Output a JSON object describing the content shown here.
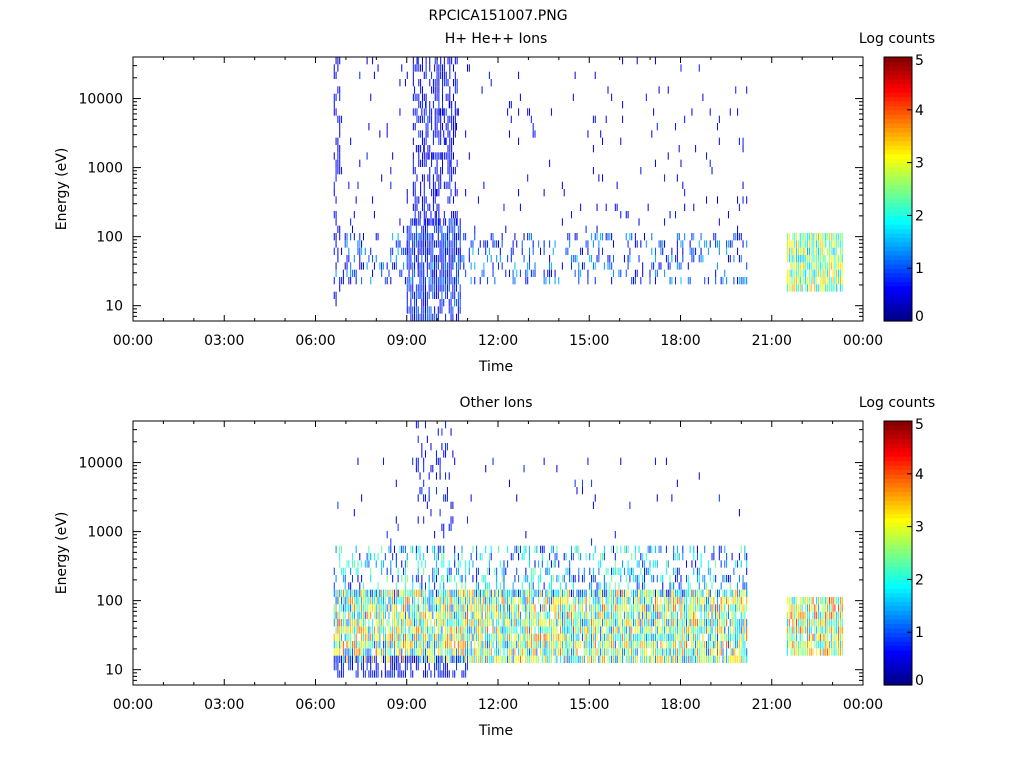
{
  "page_title": "RPCICA151007.PNG",
  "chart_data": [
    {
      "type": "heatmap",
      "title": "H+ He++ Ions",
      "xlabel": "Time",
      "ylabel": "Energy (eV)",
      "x_ticks": [
        "00:00",
        "03:00",
        "06:00",
        "09:00",
        "12:00",
        "15:00",
        "18:00",
        "21:00",
        "00:00"
      ],
      "x_range_hours": [
        0,
        24
      ],
      "y_scale": "log",
      "y_ticks": [
        {
          "value": 10,
          "label": "10"
        },
        {
          "value": 100,
          "label": "100"
        },
        {
          "value": 1000,
          "label": "1000"
        },
        {
          "value": 10000,
          "label": "10000"
        }
      ],
      "y_range": [
        6,
        40000
      ],
      "colorbar": {
        "label": "Log counts",
        "range": [
          0,
          5
        ],
        "ticks": [
          "0",
          "1",
          "2",
          "3",
          "4",
          "5"
        ],
        "colormap": "jet"
      },
      "regions": [
        {
          "t_start": 6.6,
          "t_end": 6.8,
          "e_min": 10,
          "e_max": 40000,
          "density": 0.35,
          "level_min": 0.3,
          "level_max": 0.8
        },
        {
          "t_start": 6.6,
          "t_end": 20.2,
          "e_min": 25,
          "e_max": 100,
          "density": 0.28,
          "level_min": 0.3,
          "level_max": 1.6
        },
        {
          "t_start": 6.6,
          "t_end": 20.2,
          "e_min": 100,
          "e_max": 40000,
          "density": 0.03,
          "level_min": 0.3,
          "level_max": 0.8
        },
        {
          "t_start": 9.2,
          "t_end": 10.7,
          "e_min": 150,
          "e_max": 40000,
          "density": 0.5,
          "level_min": 0.3,
          "level_max": 0.9
        },
        {
          "t_start": 9.0,
          "t_end": 10.8,
          "e_min": 6,
          "e_max": 150,
          "density": 0.75,
          "level_min": 0.3,
          "level_max": 1.2
        },
        {
          "t_start": 21.5,
          "t_end": 23.3,
          "e_min": 18,
          "e_max": 95,
          "density": 0.95,
          "level_min": 1.5,
          "level_max": 3.6
        }
      ]
    },
    {
      "type": "heatmap",
      "title": "Other Ions",
      "xlabel": "Time",
      "ylabel": "Energy (eV)",
      "x_ticks": [
        "00:00",
        "03:00",
        "06:00",
        "09:00",
        "12:00",
        "15:00",
        "18:00",
        "21:00",
        "00:00"
      ],
      "x_range_hours": [
        0,
        24
      ],
      "y_scale": "log",
      "y_ticks": [
        {
          "value": 10,
          "label": "10"
        },
        {
          "value": 100,
          "label": "100"
        },
        {
          "value": 1000,
          "label": "1000"
        },
        {
          "value": 10000,
          "label": "10000"
        }
      ],
      "y_range": [
        6,
        40000
      ],
      "colorbar": {
        "label": "Log counts",
        "range": [
          0,
          5
        ],
        "ticks": [
          "0",
          "1",
          "2",
          "3",
          "4",
          "5"
        ],
        "colormap": "jet"
      },
      "regions": [
        {
          "t_start": 6.6,
          "t_end": 20.2,
          "e_min": 15,
          "e_max": 120,
          "density": 0.92,
          "level_min": 1.0,
          "level_max": 4.0
        },
        {
          "t_start": 6.6,
          "t_end": 20.2,
          "e_min": 120,
          "e_max": 500,
          "density": 0.35,
          "level_min": 0.5,
          "level_max": 2.5
        },
        {
          "t_start": 6.6,
          "t_end": 20.2,
          "e_min": 500,
          "e_max": 10000,
          "density": 0.02,
          "level_min": 0.3,
          "level_max": 1.0
        },
        {
          "t_start": 9.3,
          "t_end": 10.6,
          "e_min": 500,
          "e_max": 40000,
          "density": 0.22,
          "level_min": 0.3,
          "level_max": 0.9
        },
        {
          "t_start": 6.6,
          "t_end": 11.0,
          "e_min": 8,
          "e_max": 15,
          "density": 0.6,
          "level_min": 0.3,
          "level_max": 1.0
        },
        {
          "t_start": 21.5,
          "t_end": 23.3,
          "e_min": 16,
          "e_max": 95,
          "density": 0.95,
          "level_min": 1.5,
          "level_max": 4.2
        }
      ]
    }
  ]
}
